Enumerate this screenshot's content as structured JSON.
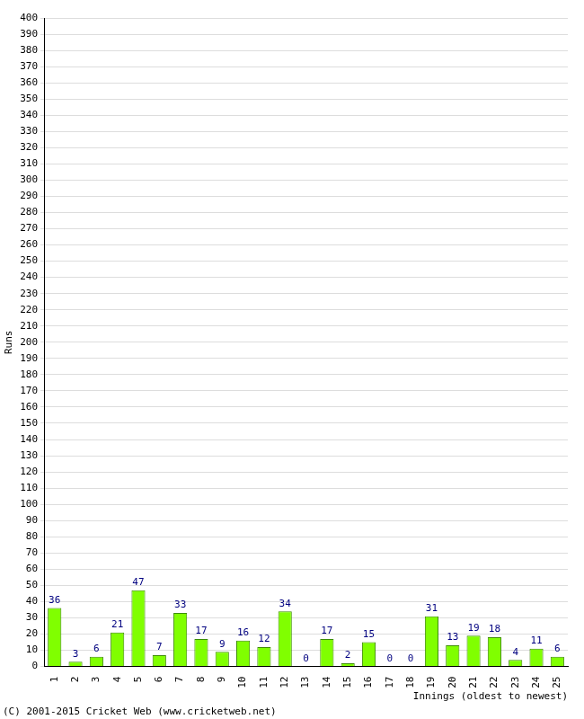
{
  "chart_data": {
    "type": "bar",
    "x_label": "Innings (oldest to newest)",
    "y_label": "Runs",
    "annotations": [
      "(C) 2001-2015 Cricket Web (www.cricketweb.net)"
    ],
    "categories": [
      "1",
      "2",
      "3",
      "4",
      "5",
      "6",
      "7",
      "8",
      "9",
      "10",
      "11",
      "12",
      "13",
      "14",
      "15",
      "16",
      "17",
      "18",
      "19",
      "20",
      "21",
      "22",
      "23",
      "24",
      "25"
    ],
    "values": [
      36,
      3,
      6,
      21,
      47,
      7,
      33,
      17,
      9,
      16,
      12,
      34,
      0,
      17,
      2,
      15,
      0,
      0,
      31,
      13,
      19,
      18,
      4,
      11,
      6
    ],
    "color": "#80ff00",
    "ylim": [
      0,
      400
    ],
    "yticks": [
      0,
      10,
      20,
      30,
      40,
      50,
      60,
      70,
      80,
      90,
      100,
      110,
      120,
      130,
      140,
      150,
      160,
      170,
      180,
      190,
      200,
      210,
      220,
      230,
      240,
      250,
      260,
      270,
      280,
      290,
      300,
      310,
      320,
      330,
      340,
      350,
      360,
      370,
      380,
      390,
      400
    ],
    "grid": true,
    "data_labels": true
  }
}
